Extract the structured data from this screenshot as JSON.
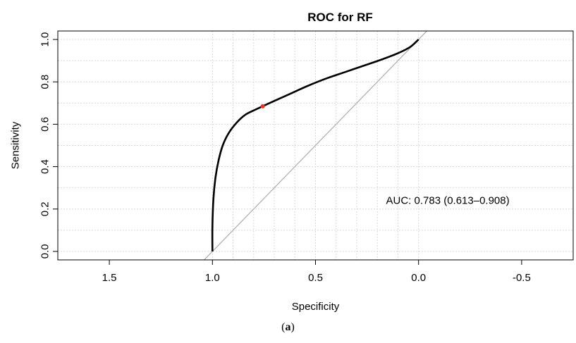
{
  "chart_data": {
    "type": "line",
    "title": "ROC for RF",
    "xlabel": "Specificity",
    "ylabel": "Sensitivity",
    "x_reversed": true,
    "xlim": [
      1.75,
      -0.75
    ],
    "ylim": [
      -0.04,
      1.04
    ],
    "x_ticks": [
      {
        "value": 1.5,
        "label": "1.5"
      },
      {
        "value": 1.0,
        "label": "1.0"
      },
      {
        "value": 0.5,
        "label": "0.5"
      },
      {
        "value": 0.0,
        "label": "0.0"
      },
      {
        "value": -0.5,
        "label": "-0.5"
      }
    ],
    "y_ticks": [
      {
        "value": 0.0,
        "label": "0.0"
      },
      {
        "value": 0.2,
        "label": "0.2"
      },
      {
        "value": 0.4,
        "label": "0.4"
      },
      {
        "value": 0.6,
        "label": "0.6"
      },
      {
        "value": 0.8,
        "label": "0.8"
      },
      {
        "value": 1.0,
        "label": "1.0"
      }
    ],
    "grid": true,
    "grid_x": [
      1.0,
      0.9,
      0.8,
      0.7,
      0.6,
      0.5,
      0.4,
      0.3,
      0.2,
      0.1,
      0.0
    ],
    "grid_y": [
      0.0,
      0.1,
      0.2,
      0.3,
      0.4,
      0.5,
      0.6,
      0.7,
      0.8,
      0.9,
      1.0
    ],
    "series": [
      {
        "color": "#000000",
        "x": [
          1.0,
          1.0,
          0.995,
          0.985,
          0.97,
          0.95,
          0.92,
          0.88,
          0.84,
          0.8,
          0.756,
          0.7,
          0.62,
          0.54,
          0.45,
          0.36,
          0.27,
          0.18,
          0.1,
          0.04,
          0.0
        ],
        "y": [
          0.0,
          0.12,
          0.25,
          0.35,
          0.43,
          0.5,
          0.56,
          0.61,
          0.645,
          0.665,
          0.685,
          0.71,
          0.745,
          0.78,
          0.815,
          0.845,
          0.875,
          0.905,
          0.935,
          0.965,
          1.0
        ]
      }
    ],
    "reference_line": {
      "x": [
        1.0,
        0.0
      ],
      "y": [
        0.0,
        1.0
      ],
      "color": "#b3b3b3"
    },
    "threshold_point": {
      "x": 0.756,
      "y": 0.685,
      "color": "#e8332a"
    },
    "annotation": {
      "text": "AUC: 0.783 (0.613–0.908)",
      "x": -0.25,
      "y": 0.24
    }
  },
  "caption": {
    "open": "(",
    "label": "a",
    "close": ")"
  }
}
